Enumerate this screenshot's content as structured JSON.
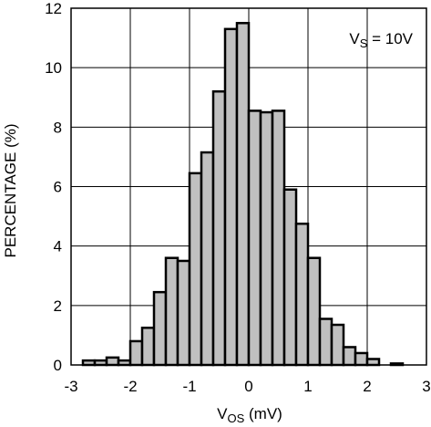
{
  "chart_data": {
    "type": "bar",
    "xlabel": {
      "main": "V",
      "sub": "OS",
      "rest": " (mV)"
    },
    "ylabel": "PERCENTAGE (%)",
    "annotation": {
      "main": "V",
      "sub": "S",
      "rest": " = 10V"
    },
    "xlim": [
      -3,
      3
    ],
    "ylim": [
      0,
      12
    ],
    "x_ticks": [
      "-3",
      "-2",
      "-1",
      "0",
      "1",
      "2",
      "3"
    ],
    "y_ticks": [
      "0",
      "2",
      "4",
      "6",
      "8",
      "10",
      "12"
    ],
    "grid": true,
    "bin_width": 0.2,
    "bars": [
      {
        "x": -2.7,
        "value": 0.15
      },
      {
        "x": -2.5,
        "value": 0.15
      },
      {
        "x": -2.3,
        "value": 0.25
      },
      {
        "x": -2.1,
        "value": 0.15
      },
      {
        "x": -1.9,
        "value": 0.8
      },
      {
        "x": -1.7,
        "value": 1.25
      },
      {
        "x": -1.5,
        "value": 2.45
      },
      {
        "x": -1.3,
        "value": 3.6
      },
      {
        "x": -1.1,
        "value": 3.5
      },
      {
        "x": -0.9,
        "value": 6.45
      },
      {
        "x": -0.7,
        "value": 7.15
      },
      {
        "x": -0.5,
        "value": 9.2
      },
      {
        "x": -0.3,
        "value": 11.3
      },
      {
        "x": -0.1,
        "value": 11.5
      },
      {
        "x": 0.1,
        "value": 8.55
      },
      {
        "x": 0.3,
        "value": 8.5
      },
      {
        "x": 0.5,
        "value": 8.55
      },
      {
        "x": 0.7,
        "value": 5.9
      },
      {
        "x": 0.9,
        "value": 4.75
      },
      {
        "x": 1.1,
        "value": 3.6
      },
      {
        "x": 1.3,
        "value": 1.55
      },
      {
        "x": 1.5,
        "value": 1.35
      },
      {
        "x": 1.7,
        "value": 0.6
      },
      {
        "x": 1.9,
        "value": 0.4
      },
      {
        "x": 2.1,
        "value": 0.2
      },
      {
        "x": 2.5,
        "value": 0.05
      }
    ],
    "colors": {
      "bar_fill": "#c0c0c0",
      "bar_edge": "#000000",
      "grid": "#000000"
    }
  }
}
